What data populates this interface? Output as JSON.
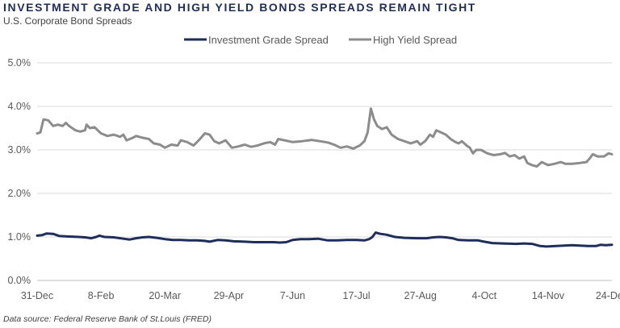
{
  "header": {
    "title": "INVESTMENT GRADE AND HIGH YIELD BONDS SPREADS REMAIN TIGHT",
    "subtitle": "U.S. Corporate Bond Spreads"
  },
  "footer": {
    "source": "Data source: Federal Reserve Bank of St.Louis (FRED)"
  },
  "colors": {
    "investment_grade": "#1f2d5a",
    "high_yield": "#8c8c8c",
    "gridline": "#d9d9d9",
    "axis": "#bfbfbf"
  },
  "chart_data": {
    "type": "line",
    "title": "INVESTMENT GRADE AND HIGH YIELD BONDS SPREADS REMAIN TIGHT",
    "subtitle": "U.S. Corporate Bond Spreads",
    "xlabel": "",
    "ylabel": "",
    "x_ticks": [
      "31-Dec",
      "8-Feb",
      "20-Mar",
      "29-Apr",
      "7-Jun",
      "17-Jul",
      "27-Aug",
      "4-Oct",
      "14-Nov",
      "24-Dec"
    ],
    "y_ticks": [
      "0.0%",
      "1.0%",
      "2.0%",
      "3.0%",
      "4.0%",
      "5.0%"
    ],
    "ylim": [
      0,
      5
    ],
    "x_range_days": [
      0,
      360
    ],
    "grid": true,
    "legend_position": "top-center",
    "series": [
      {
        "name": "Investment Grade Spread",
        "color": "#1f2d5a",
        "points": [
          [
            0,
            1.03
          ],
          [
            3,
            1.04
          ],
          [
            6,
            1.08
          ],
          [
            10,
            1.07
          ],
          [
            14,
            1.02
          ],
          [
            20,
            1.01
          ],
          [
            26,
            1.0
          ],
          [
            30,
            0.99
          ],
          [
            34,
            0.97
          ],
          [
            37,
            1.0
          ],
          [
            39,
            1.03
          ],
          [
            42,
            1.0
          ],
          [
            48,
            0.99
          ],
          [
            54,
            0.96
          ],
          [
            58,
            0.94
          ],
          [
            62,
            0.97
          ],
          [
            66,
            0.99
          ],
          [
            70,
            1.0
          ],
          [
            75,
            0.98
          ],
          [
            80,
            0.95
          ],
          [
            85,
            0.93
          ],
          [
            90,
            0.93
          ],
          [
            95,
            0.92
          ],
          [
            100,
            0.92
          ],
          [
            105,
            0.91
          ],
          [
            108,
            0.89
          ],
          [
            113,
            0.93
          ],
          [
            118,
            0.92
          ],
          [
            123,
            0.9
          ],
          [
            130,
            0.89
          ],
          [
            136,
            0.88
          ],
          [
            142,
            0.88
          ],
          [
            148,
            0.88
          ],
          [
            152,
            0.87
          ],
          [
            156,
            0.88
          ],
          [
            160,
            0.93
          ],
          [
            165,
            0.95
          ],
          [
            170,
            0.95
          ],
          [
            176,
            0.96
          ],
          [
            182,
            0.92
          ],
          [
            188,
            0.92
          ],
          [
            194,
            0.93
          ],
          [
            200,
            0.93
          ],
          [
            205,
            0.92
          ],
          [
            208,
            0.95
          ],
          [
            210,
            1.0
          ],
          [
            212,
            1.1
          ],
          [
            215,
            1.07
          ],
          [
            219,
            1.05
          ],
          [
            224,
            1.0
          ],
          [
            230,
            0.98
          ],
          [
            238,
            0.97
          ],
          [
            244,
            0.97
          ],
          [
            248,
            0.99
          ],
          [
            252,
            1.0
          ],
          [
            256,
            0.99
          ],
          [
            260,
            0.97
          ],
          [
            264,
            0.93
          ],
          [
            270,
            0.92
          ],
          [
            276,
            0.92
          ],
          [
            280,
            0.89
          ],
          [
            285,
            0.86
          ],
          [
            292,
            0.85
          ],
          [
            300,
            0.84
          ],
          [
            305,
            0.85
          ],
          [
            310,
            0.84
          ],
          [
            315,
            0.79
          ],
          [
            319,
            0.78
          ],
          [
            325,
            0.79
          ],
          [
            330,
            0.8
          ],
          [
            335,
            0.81
          ],
          [
            340,
            0.8
          ],
          [
            345,
            0.79
          ],
          [
            350,
            0.79
          ],
          [
            353,
            0.82
          ],
          [
            356,
            0.81
          ],
          [
            360,
            0.82
          ]
        ]
      },
      {
        "name": "High Yield Spread",
        "color": "#8c8c8c",
        "points": [
          [
            0,
            3.38
          ],
          [
            2,
            3.4
          ],
          [
            4,
            3.7
          ],
          [
            7,
            3.68
          ],
          [
            10,
            3.55
          ],
          [
            13,
            3.58
          ],
          [
            16,
            3.55
          ],
          [
            18,
            3.62
          ],
          [
            20,
            3.55
          ],
          [
            22,
            3.5
          ],
          [
            24,
            3.45
          ],
          [
            27,
            3.42
          ],
          [
            30,
            3.45
          ],
          [
            31,
            3.58
          ],
          [
            33,
            3.5
          ],
          [
            36,
            3.52
          ],
          [
            40,
            3.38
          ],
          [
            44,
            3.32
          ],
          [
            48,
            3.35
          ],
          [
            52,
            3.3
          ],
          [
            54,
            3.35
          ],
          [
            56,
            3.22
          ],
          [
            60,
            3.28
          ],
          [
            62,
            3.32
          ],
          [
            66,
            3.28
          ],
          [
            70,
            3.25
          ],
          [
            73,
            3.15
          ],
          [
            77,
            3.12
          ],
          [
            80,
            3.05
          ],
          [
            84,
            3.12
          ],
          [
            88,
            3.1
          ],
          [
            90,
            3.22
          ],
          [
            94,
            3.18
          ],
          [
            98,
            3.1
          ],
          [
            102,
            3.25
          ],
          [
            105,
            3.38
          ],
          [
            108,
            3.35
          ],
          [
            111,
            3.2
          ],
          [
            114,
            3.15
          ],
          [
            118,
            3.22
          ],
          [
            122,
            3.05
          ],
          [
            126,
            3.08
          ],
          [
            130,
            3.12
          ],
          [
            134,
            3.07
          ],
          [
            138,
            3.1
          ],
          [
            142,
            3.15
          ],
          [
            146,
            3.18
          ],
          [
            149,
            3.12
          ],
          [
            151,
            3.25
          ],
          [
            155,
            3.22
          ],
          [
            160,
            3.18
          ],
          [
            166,
            3.2
          ],
          [
            172,
            3.23
          ],
          [
            177,
            3.2
          ],
          [
            182,
            3.17
          ],
          [
            186,
            3.12
          ],
          [
            190,
            3.05
          ],
          [
            194,
            3.08
          ],
          [
            198,
            3.03
          ],
          [
            202,
            3.1
          ],
          [
            205,
            3.2
          ],
          [
            207,
            3.4
          ],
          [
            209,
            3.95
          ],
          [
            211,
            3.7
          ],
          [
            213,
            3.55
          ],
          [
            216,
            3.48
          ],
          [
            219,
            3.52
          ],
          [
            222,
            3.35
          ],
          [
            226,
            3.25
          ],
          [
            230,
            3.2
          ],
          [
            234,
            3.15
          ],
          [
            238,
            3.2
          ],
          [
            240,
            3.12
          ],
          [
            243,
            3.2
          ],
          [
            246,
            3.35
          ],
          [
            248,
            3.3
          ],
          [
            250,
            3.45
          ],
          [
            253,
            3.4
          ],
          [
            256,
            3.35
          ],
          [
            259,
            3.25
          ],
          [
            262,
            3.18
          ],
          [
            264,
            3.15
          ],
          [
            266,
            3.2
          ],
          [
            269,
            3.1
          ],
          [
            271,
            3.05
          ],
          [
            273,
            2.92
          ],
          [
            275,
            3.0
          ],
          [
            278,
            3.0
          ],
          [
            282,
            2.92
          ],
          [
            286,
            2.88
          ],
          [
            290,
            2.9
          ],
          [
            293,
            2.93
          ],
          [
            296,
            2.85
          ],
          [
            299,
            2.88
          ],
          [
            302,
            2.8
          ],
          [
            305,
            2.85
          ],
          [
            307,
            2.7
          ],
          [
            310,
            2.65
          ],
          [
            313,
            2.62
          ],
          [
            316,
            2.72
          ],
          [
            320,
            2.65
          ],
          [
            324,
            2.68
          ],
          [
            328,
            2.72
          ],
          [
            331,
            2.68
          ],
          [
            335,
            2.68
          ],
          [
            340,
            2.7
          ],
          [
            344,
            2.72
          ],
          [
            346,
            2.8
          ],
          [
            348,
            2.9
          ],
          [
            351,
            2.85
          ],
          [
            355,
            2.85
          ],
          [
            358,
            2.92
          ],
          [
            360,
            2.9
          ]
        ]
      }
    ]
  }
}
